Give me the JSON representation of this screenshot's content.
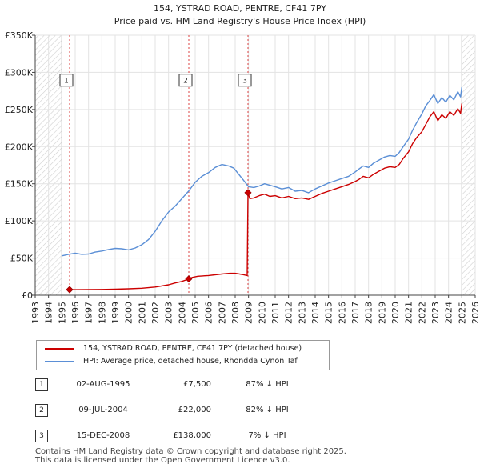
{
  "chart_data": {
    "type": "line",
    "title": "154, YSTRAD ROAD, PENTRE, CF41 7PY",
    "subtitle": "Price paid vs. HM Land Registry's House Price Index (HPI)",
    "xlim": [
      1993,
      2026
    ],
    "ylim": [
      0,
      350000
    ],
    "x_ticks": [
      "1993",
      "1994",
      "1995",
      "1996",
      "1997",
      "1998",
      "1999",
      "2000",
      "2001",
      "2002",
      "2003",
      "2004",
      "2005",
      "2006",
      "2007",
      "2008",
      "2009",
      "2010",
      "2011",
      "2012",
      "2013",
      "2014",
      "2015",
      "2016",
      "2017",
      "2018",
      "2019",
      "2020",
      "2021",
      "2022",
      "2023",
      "2024",
      "2025",
      "2026"
    ],
    "y_ticks": [
      {
        "value": 0,
        "label": "£0"
      },
      {
        "value": 50000,
        "label": "£50K"
      },
      {
        "value": 100000,
        "label": "£100K"
      },
      {
        "value": 150000,
        "label": "£150K"
      },
      {
        "value": 200000,
        "label": "£200K"
      },
      {
        "value": 250000,
        "label": "£250K"
      },
      {
        "value": 300000,
        "label": "£300K"
      },
      {
        "value": 350000,
        "label": "£350K"
      }
    ],
    "hatched_ranges": [
      [
        1993,
        1995.0
      ],
      [
        2025.0,
        2026
      ]
    ],
    "series": [
      {
        "name": "154, YSTRAD ROAD, PENTRE, CF41 7PY (detached house)",
        "color": "#cc0000",
        "x": [
          1995.58,
          1996,
          1997,
          1998,
          1999,
          2000,
          2001,
          2002,
          2003,
          2003.5,
          2004.0,
          2004.52,
          2004.8,
          2005.2,
          2006,
          2007,
          2007.6,
          2008.0,
          2008.5,
          2008.9,
          2008.96,
          2009.1,
          2009.4,
          2009.8,
          2010.2,
          2010.6,
          2011,
          2011.5,
          2012,
          2012.5,
          2013,
          2013.5,
          2014,
          2014.5,
          2015,
          2015.5,
          2016,
          2016.5,
          2017,
          2017.3,
          2017.6,
          2018,
          2018.4,
          2018.8,
          2019.2,
          2019.6,
          2020,
          2020.3,
          2020.6,
          2021,
          2021.3,
          2021.6,
          2022,
          2022.3,
          2022.6,
          2022.9,
          2023.2,
          2023.5,
          2023.8,
          2024.1,
          2024.4,
          2024.7,
          2024.9,
          2025.0
        ],
        "y": [
          7500,
          7400,
          7600,
          7800,
          8100,
          8600,
          9400,
          11000,
          14000,
          16500,
          18500,
          22000,
          24000,
          25500,
          26500,
          28500,
          29500,
          29500,
          28000,
          26500,
          138000,
          130000,
          131000,
          134000,
          136000,
          133000,
          134000,
          131000,
          133000,
          130000,
          131000,
          129000,
          133000,
          137000,
          140000,
          143000,
          146000,
          149000,
          153000,
          156000,
          160000,
          158000,
          163000,
          167000,
          171000,
          173000,
          172000,
          176000,
          184000,
          193000,
          204000,
          212000,
          220000,
          230000,
          240000,
          247000,
          235000,
          243000,
          238000,
          247000,
          242000,
          251000,
          245000,
          258000
        ]
      },
      {
        "name": "HPI: Average price, detached house, Rhondda Cynon Taf",
        "color": "#5b8fd6",
        "x": [
          1995.0,
          1995.5,
          1996,
          1996.5,
          1997,
          1997.5,
          1998,
          1998.5,
          1999,
          1999.5,
          2000,
          2000.5,
          2001,
          2001.5,
          2002,
          2002.5,
          2003,
          2003.5,
          2004,
          2004.5,
          2005,
          2005.5,
          2006,
          2006.5,
          2007,
          2007.5,
          2007.9,
          2008.3,
          2008.7,
          2009.0,
          2009.4,
          2009.8,
          2010.2,
          2010.6,
          2011,
          2011.5,
          2012,
          2012.5,
          2013,
          2013.5,
          2014,
          2014.5,
          2015,
          2015.5,
          2016,
          2016.5,
          2017,
          2017.3,
          2017.6,
          2018,
          2018.4,
          2018.8,
          2019.2,
          2019.6,
          2020,
          2020.3,
          2020.6,
          2021,
          2021.3,
          2021.6,
          2022,
          2022.3,
          2022.6,
          2022.9,
          2023.2,
          2023.5,
          2023.8,
          2024.1,
          2024.4,
          2024.7,
          2024.9,
          2025.0
        ],
        "y": [
          53000,
          55000,
          56500,
          55000,
          55500,
          58000,
          59500,
          61500,
          63000,
          62500,
          61000,
          63500,
          68000,
          75000,
          86000,
          100000,
          112000,
          120000,
          130000,
          140000,
          152000,
          160000,
          165000,
          172000,
          176000,
          174000,
          171000,
          162000,
          153000,
          146000,
          145000,
          147000,
          150000,
          148000,
          146000,
          143000,
          145000,
          140000,
          141000,
          138000,
          143000,
          147000,
          151000,
          154000,
          157000,
          160000,
          166000,
          170000,
          174000,
          172000,
          178000,
          182000,
          186000,
          188000,
          187000,
          192000,
          200000,
          210000,
          222000,
          232000,
          244000,
          255000,
          262000,
          270000,
          258000,
          266000,
          260000,
          269000,
          263000,
          274000,
          267000,
          280000
        ]
      }
    ],
    "sale_markers": [
      {
        "label": "1",
        "x": 1995.58,
        "y": 7500
      },
      {
        "label": "2",
        "x": 2004.52,
        "y": 22000
      },
      {
        "label": "3",
        "x": 2008.96,
        "y": 138000
      }
    ],
    "marker_label_value": 290000
  },
  "legend": {
    "property_label": "154, YSTRAD ROAD, PENTRE, CF41 7PY (detached house)",
    "hpi_label": "HPI: Average price, detached house, Rhondda Cynon Taf",
    "property_color": "#cc0000",
    "hpi_color": "#5b8fd6"
  },
  "sales": [
    {
      "num": "1",
      "date": "02-AUG-1995",
      "price": "£7,500",
      "hpi": "87% ↓ HPI"
    },
    {
      "num": "2",
      "date": "09-JUL-2004",
      "price": "£22,000",
      "hpi": "82% ↓ HPI"
    },
    {
      "num": "3",
      "date": "15-DEC-2008",
      "price": "£138,000",
      "hpi": "7% ↓ HPI"
    }
  ],
  "footer": {
    "line1": "Contains HM Land Registry data © Crown copyright and database right 2025.",
    "line2": "This data is licensed under the Open Government Licence v3.0."
  }
}
